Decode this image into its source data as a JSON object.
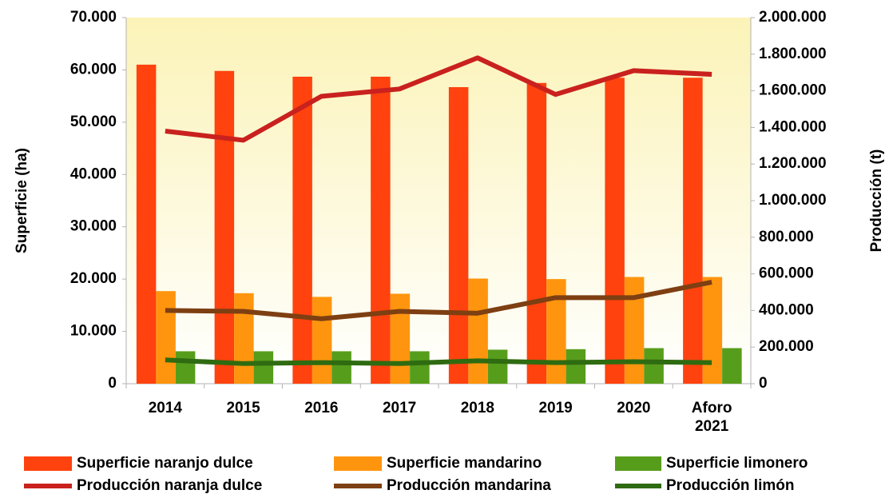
{
  "chart_data": {
    "type": "bar",
    "categories": [
      "2014",
      "2015",
      "2016",
      "2017",
      "2018",
      "2019",
      "2020",
      "Aforo 2021"
    ],
    "ylabel": "Superficie (ha)",
    "y2label": "Producción (t)",
    "ylim": [
      0,
      70000
    ],
    "yticks": [
      {
        "value": 0,
        "label": "0"
      },
      {
        "value": 10000,
        "label": "10.000"
      },
      {
        "value": 20000,
        "label": "20.000"
      },
      {
        "value": 30000,
        "label": "30.000"
      },
      {
        "value": 40000,
        "label": "40.000"
      },
      {
        "value": 50000,
        "label": "50.000"
      },
      {
        "value": 60000,
        "label": "60.000"
      },
      {
        "value": 70000,
        "label": "70.000"
      }
    ],
    "y2lim": [
      0,
      2000000
    ],
    "y2ticks": [
      {
        "value": 0,
        "label": "0"
      },
      {
        "value": 200000,
        "label": "200.000"
      },
      {
        "value": 400000,
        "label": "400.000"
      },
      {
        "value": 600000,
        "label": "600.000"
      },
      {
        "value": 800000,
        "label": "800.000"
      },
      {
        "value": 1000000,
        "label": "1.000.000"
      },
      {
        "value": 1200000,
        "label": "1.200.000"
      },
      {
        "value": 1400000,
        "label": "1.400.000"
      },
      {
        "value": 1600000,
        "label": "1.600.000"
      },
      {
        "value": 1800000,
        "label": "1.800.000"
      },
      {
        "value": 2000000,
        "label": "2.000.000"
      }
    ],
    "series": [
      {
        "name": "Superficie naranjo dulce",
        "type": "bar",
        "color": "#ff420e",
        "values": [
          61000,
          59800,
          58700,
          58700,
          56700,
          57500,
          58500,
          58500
        ]
      },
      {
        "name": "Superficie mandarino",
        "type": "bar",
        "color": "#ff950e",
        "values": [
          17700,
          17300,
          16600,
          17200,
          20100,
          20000,
          20400,
          20400
        ]
      },
      {
        "name": "Superficie limonero",
        "type": "bar",
        "color": "#579d1c",
        "values": [
          6200,
          6200,
          6200,
          6200,
          6500,
          6600,
          6800,
          6800
        ]
      },
      {
        "name": "Producción naranja dulce",
        "type": "line",
        "axis": "y2",
        "color": "#c9211e",
        "values": [
          1380000,
          1330000,
          1570000,
          1610000,
          1780000,
          1580000,
          1710000,
          1690000
        ]
      },
      {
        "name": "Producción mandarina",
        "type": "line",
        "axis": "y2",
        "color": "#7e3f12",
        "values": [
          400000,
          395000,
          355000,
          395000,
          385000,
          470000,
          470000,
          555000
        ]
      },
      {
        "name": "Producción limón",
        "type": "line",
        "axis": "y2",
        "color": "#2f6b11",
        "values": [
          130000,
          110000,
          115000,
          110000,
          125000,
          115000,
          120000,
          115000
        ]
      }
    ]
  }
}
